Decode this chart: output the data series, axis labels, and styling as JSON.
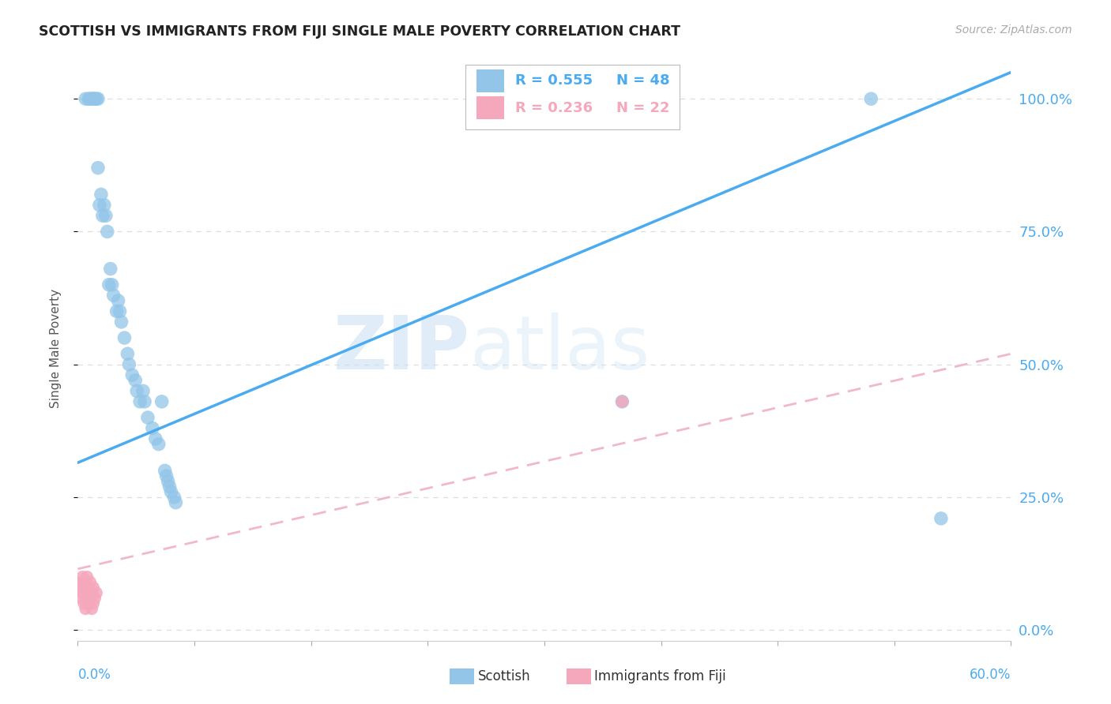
{
  "title": "SCOTTISH VS IMMIGRANTS FROM FIJI SINGLE MALE POVERTY CORRELATION CHART",
  "source": "Source: ZipAtlas.com",
  "ylabel": "Single Male Poverty",
  "xlim": [
    0.0,
    0.6
  ],
  "ylim": [
    -0.02,
    1.08
  ],
  "ytick_vals": [
    0.0,
    0.25,
    0.5,
    0.75,
    1.0
  ],
  "ytick_labels": [
    "0.0%",
    "25.0%",
    "50.0%",
    "75.0%",
    "100.0%"
  ],
  "xtick_vals": [
    0.0,
    0.075,
    0.15,
    0.225,
    0.3,
    0.375,
    0.45,
    0.525,
    0.6
  ],
  "watermark_zip": "ZIP",
  "watermark_atlas": "atlas",
  "legend1_r": "R = 0.555",
  "legend1_n": "N = 48",
  "legend2_r": "R = 0.236",
  "legend2_n": "N = 22",
  "scottish_color": "#92C5E8",
  "fiji_color": "#F5A8BC",
  "line1_color": "#4AABF0",
  "line2_color": "#F0B8C8",
  "grid_color": "#DDDDDD",
  "background_color": "#FFFFFF",
  "scottish_line_x0": 0.0,
  "scottish_line_y0": 0.315,
  "scottish_line_x1": 0.6,
  "scottish_line_y1": 1.05,
  "fiji_line_x0": 0.0,
  "fiji_line_y0": 0.115,
  "fiji_line_x1": 0.6,
  "fiji_line_y1": 0.52,
  "scottish_x": [
    0.005,
    0.007,
    0.008,
    0.009,
    0.01,
    0.01,
    0.011,
    0.012,
    0.013,
    0.013,
    0.014,
    0.015,
    0.016,
    0.017,
    0.018,
    0.019,
    0.02,
    0.021,
    0.022,
    0.023,
    0.025,
    0.026,
    0.027,
    0.028,
    0.03,
    0.032,
    0.033,
    0.035,
    0.037,
    0.038,
    0.04,
    0.042,
    0.043,
    0.045,
    0.048,
    0.05,
    0.052,
    0.054,
    0.056,
    0.057,
    0.058,
    0.059,
    0.06,
    0.062,
    0.063,
    0.35,
    0.51,
    0.555
  ],
  "scottish_y": [
    1.0,
    1.0,
    1.0,
    1.0,
    1.0,
    1.0,
    1.0,
    1.0,
    1.0,
    0.87,
    0.8,
    0.82,
    0.78,
    0.8,
    0.78,
    0.75,
    0.65,
    0.68,
    0.65,
    0.63,
    0.6,
    0.62,
    0.6,
    0.58,
    0.55,
    0.52,
    0.5,
    0.48,
    0.47,
    0.45,
    0.43,
    0.45,
    0.43,
    0.4,
    0.38,
    0.36,
    0.35,
    0.43,
    0.3,
    0.29,
    0.28,
    0.27,
    0.26,
    0.25,
    0.24,
    0.43,
    1.0,
    0.21
  ],
  "fiji_x": [
    0.001,
    0.002,
    0.002,
    0.003,
    0.003,
    0.004,
    0.004,
    0.005,
    0.005,
    0.006,
    0.006,
    0.007,
    0.007,
    0.008,
    0.008,
    0.009,
    0.009,
    0.01,
    0.01,
    0.011,
    0.012,
    0.35
  ],
  "fiji_y": [
    0.08,
    0.06,
    0.09,
    0.07,
    0.1,
    0.05,
    0.08,
    0.04,
    0.09,
    0.06,
    0.1,
    0.05,
    0.08,
    0.06,
    0.09,
    0.04,
    0.07,
    0.05,
    0.08,
    0.06,
    0.07,
    0.43
  ]
}
